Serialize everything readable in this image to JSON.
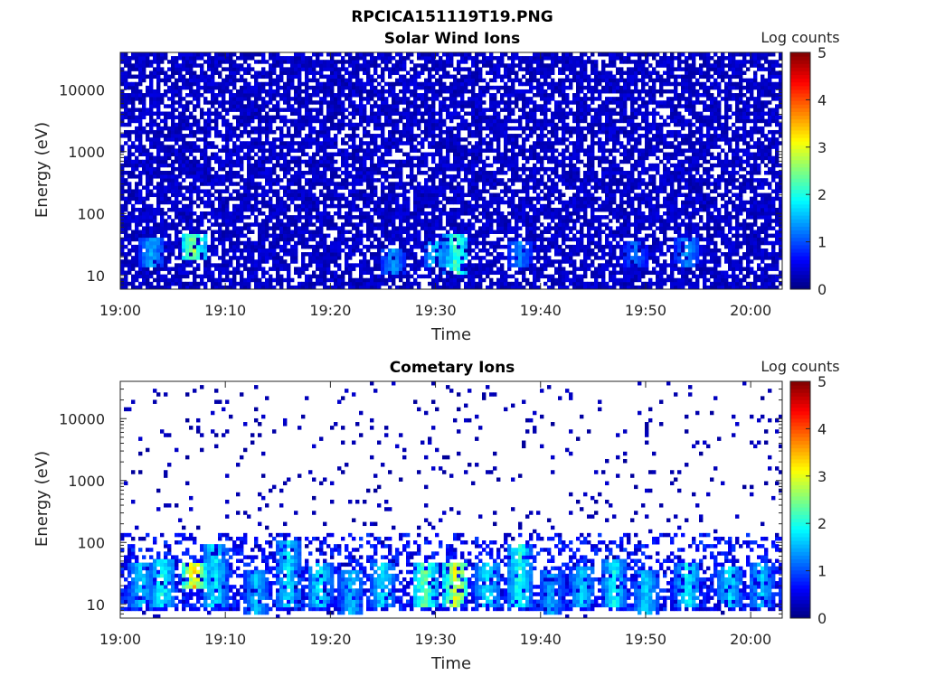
{
  "figure_title": "RPCICA151119T19.PNG",
  "colors": {
    "axis": "#262626",
    "background": "#ffffff",
    "colormap": "jet"
  },
  "chart_data": [
    {
      "type": "heatmap",
      "title": "Solar Wind Ions",
      "xlabel": "Time",
      "ylabel": "Energy (eV)",
      "y_scale": "log",
      "xlim": [
        "19:00",
        "20:03"
      ],
      "ylim": [
        6,
        40000
      ],
      "x_ticks": [
        "19:00",
        "19:10",
        "19:20",
        "19:30",
        "19:40",
        "19:50",
        "20:00"
      ],
      "y_ticks": [
        "10",
        "100",
        "1000",
        "10000"
      ],
      "colorbar": {
        "label": "Log counts",
        "range": [
          0,
          5
        ],
        "ticks": [
          "0",
          "1",
          "2",
          "3",
          "4",
          "5"
        ]
      },
      "background_level": {
        "energy_range_eV": [
          6,
          40000
        ],
        "log_counts": 0.4,
        "fill_fraction": 0.75
      },
      "features": [
        {
          "time": "19:03",
          "energy_eV": [
            15,
            35
          ],
          "log_counts": 1.6
        },
        {
          "time": "19:07",
          "energy_eV": [
            20,
            45
          ],
          "log_counts": 2.8
        },
        {
          "time": "19:26",
          "energy_eV": [
            12,
            25
          ],
          "log_counts": 1.5
        },
        {
          "time": "19:30",
          "energy_eV": [
            15,
            30
          ],
          "log_counts": 1.7
        },
        {
          "time": "19:32",
          "energy_eV": [
            12,
            45
          ],
          "log_counts": 2.4
        },
        {
          "time": "19:38",
          "energy_eV": [
            15,
            30
          ],
          "log_counts": 1.4
        },
        {
          "time": "19:49",
          "energy_eV": [
            15,
            30
          ],
          "log_counts": 1.3
        },
        {
          "time": "19:54",
          "energy_eV": [
            15,
            35
          ],
          "log_counts": 1.5
        }
      ]
    },
    {
      "type": "heatmap",
      "title": "Cometary Ions",
      "xlabel": "Time",
      "ylabel": "Energy (eV)",
      "y_scale": "log",
      "xlim": [
        "19:00",
        "20:03"
      ],
      "ylim": [
        6,
        40000
      ],
      "x_ticks": [
        "19:00",
        "19:10",
        "19:20",
        "19:30",
        "19:40",
        "19:50",
        "20:00"
      ],
      "y_ticks": [
        "10",
        "100",
        "1000",
        "10000"
      ],
      "colorbar": {
        "label": "Log counts",
        "range": [
          0,
          5
        ],
        "ticks": [
          "0",
          "1",
          "2",
          "3",
          "4",
          "5"
        ]
      },
      "background_level": {
        "energy_range_eV": [
          6,
          40000
        ],
        "log_counts": 0.3,
        "fill_fraction": 0.05
      },
      "low_energy_band": {
        "energy_eV": [
          8,
          150
        ],
        "log_counts": 0.8
      },
      "features": [
        {
          "time": "19:02",
          "energy_eV": [
            10,
            40
          ],
          "log_counts": 1.8
        },
        {
          "time": "19:04",
          "energy_eV": [
            10,
            50
          ],
          "log_counts": 2.1
        },
        {
          "time": "19:07",
          "energy_eV": [
            20,
            40
          ],
          "log_counts": 3.5
        },
        {
          "time": "19:09",
          "energy_eV": [
            10,
            80
          ],
          "log_counts": 2.0
        },
        {
          "time": "19:13",
          "energy_eV": [
            8,
            30
          ],
          "log_counts": 1.7
        },
        {
          "time": "19:16",
          "energy_eV": [
            10,
            100
          ],
          "log_counts": 1.9
        },
        {
          "time": "19:19",
          "energy_eV": [
            10,
            40
          ],
          "log_counts": 2.0
        },
        {
          "time": "19:22",
          "energy_eV": [
            8,
            30
          ],
          "log_counts": 1.7
        },
        {
          "time": "19:25",
          "energy_eV": [
            10,
            40
          ],
          "log_counts": 1.9
        },
        {
          "time": "19:29",
          "energy_eV": [
            10,
            40
          ],
          "log_counts": 2.6
        },
        {
          "time": "19:32",
          "energy_eV": [
            10,
            45
          ],
          "log_counts": 3.3
        },
        {
          "time": "19:35",
          "energy_eV": [
            10,
            40
          ],
          "log_counts": 2.0
        },
        {
          "time": "19:38",
          "energy_eV": [
            10,
            80
          ],
          "log_counts": 2.2
        },
        {
          "time": "19:41",
          "energy_eV": [
            8,
            30
          ],
          "log_counts": 1.6
        },
        {
          "time": "19:44",
          "energy_eV": [
            10,
            35
          ],
          "log_counts": 1.8
        },
        {
          "time": "19:47",
          "energy_eV": [
            10,
            50
          ],
          "log_counts": 2.0
        },
        {
          "time": "19:50",
          "energy_eV": [
            8,
            30
          ],
          "log_counts": 1.8
        },
        {
          "time": "19:54",
          "energy_eV": [
            10,
            40
          ],
          "log_counts": 2.0
        },
        {
          "time": "19:58",
          "energy_eV": [
            10,
            35
          ],
          "log_counts": 1.9
        },
        {
          "time": "20:01",
          "energy_eV": [
            10,
            40
          ],
          "log_counts": 1.8
        }
      ]
    }
  ]
}
